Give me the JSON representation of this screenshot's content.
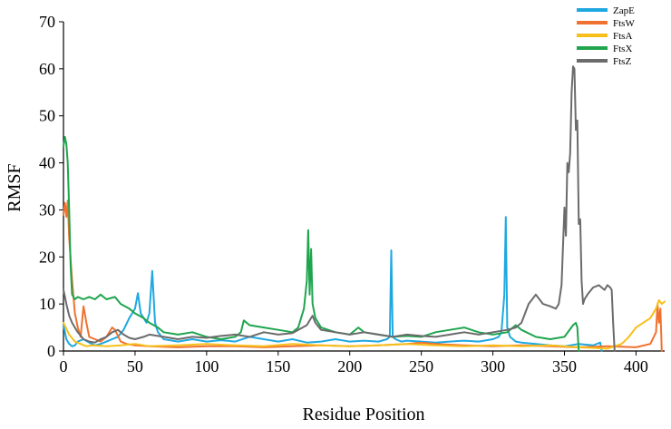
{
  "chart_data": {
    "type": "line",
    "title": "",
    "xlabel": "Residue Position",
    "ylabel": "RMSF",
    "xlim": [
      0,
      420
    ],
    "ylim": [
      0,
      70
    ],
    "x_ticks": [
      0,
      50,
      100,
      150,
      200,
      250,
      300,
      350,
      400
    ],
    "y_ticks": [
      0,
      10,
      20,
      30,
      40,
      50,
      60,
      70
    ],
    "grid": false,
    "legend_position": "top-right",
    "series": [
      {
        "name": "ZapE",
        "color": "#1FA8E0",
        "x": [
          0,
          2,
          4,
          6,
          8,
          10,
          14,
          18,
          22,
          26,
          30,
          34,
          38,
          42,
          46,
          48,
          50,
          52,
          54,
          56,
          58,
          60,
          62,
          64,
          66,
          70,
          80,
          90,
          100,
          110,
          120,
          130,
          140,
          150,
          160,
          170,
          180,
          190,
          200,
          210,
          220,
          226,
          228,
          229,
          230,
          232,
          236,
          240,
          250,
          260,
          270,
          280,
          290,
          300,
          304,
          306,
          308,
          309,
          310,
          312,
          316,
          320,
          330,
          340,
          350,
          360,
          370,
          375,
          376
        ],
        "y": [
          5.5,
          2.5,
          1.5,
          1.0,
          1.2,
          2.0,
          2.5,
          1.8,
          1.2,
          1.5,
          2.0,
          2.5,
          3.0,
          4.5,
          7.0,
          8.0,
          9.0,
          12.3,
          8.0,
          7.0,
          6.0,
          8.0,
          17.0,
          6.0,
          4.0,
          2.5,
          2.0,
          2.5,
          2.0,
          2.3,
          2.0,
          3.0,
          2.5,
          2.0,
          2.5,
          1.8,
          2.0,
          2.5,
          2.0,
          2.2,
          2.0,
          2.5,
          3.0,
          21.4,
          3.0,
          2.5,
          2.0,
          2.2,
          2.0,
          1.8,
          2.0,
          2.2,
          2.0,
          2.5,
          3.0,
          4.0,
          12.0,
          28.5,
          5.0,
          3.0,
          2.0,
          1.8,
          1.5,
          1.2,
          1.0,
          1.5,
          1.2,
          1.8,
          0
        ]
      },
      {
        "name": "FtsW",
        "color": "#F07230",
        "x": [
          0,
          1,
          2,
          3,
          4,
          6,
          8,
          10,
          12,
          14,
          16,
          18,
          22,
          26,
          30,
          34,
          36,
          40,
          44,
          50,
          60,
          80,
          100,
          120,
          140,
          160,
          180,
          200,
          220,
          240,
          250,
          260,
          280,
          300,
          320,
          340,
          360,
          380,
          400,
          410,
          414,
          415,
          416,
          417,
          418
        ],
        "y": [
          29.0,
          31.5,
          28.5,
          32.0,
          24.0,
          15.0,
          8.0,
          5.0,
          3.0,
          9.5,
          6.0,
          3.0,
          2.5,
          2.0,
          3.0,
          5.0,
          4.5,
          2.0,
          1.5,
          1.2,
          1.0,
          0.8,
          1.0,
          1.0,
          0.8,
          1.0,
          1.2,
          1.0,
          1.2,
          1.5,
          1.8,
          1.5,
          1.2,
          1.0,
          1.2,
          1.0,
          0.8,
          1.0,
          0.8,
          1.5,
          4.0,
          10.0,
          6.0,
          9.0,
          0
        ]
      },
      {
        "name": "FtsA",
        "color": "#F7BF1A",
        "x": [
          0,
          4,
          8,
          12,
          16,
          20,
          30,
          40,
          50,
          60,
          80,
          100,
          120,
          140,
          160,
          180,
          200,
          220,
          240,
          260,
          280,
          300,
          320,
          340,
          360,
          380,
          390,
          395,
          400,
          405,
          410,
          414,
          416,
          418,
          420
        ],
        "y": [
          6.0,
          3.5,
          2.0,
          1.5,
          1.0,
          1.2,
          1.0,
          1.2,
          1.5,
          1.0,
          1.2,
          1.5,
          1.2,
          1.0,
          1.5,
          1.2,
          1.0,
          1.2,
          1.5,
          1.2,
          1.0,
          1.2,
          1.0,
          1.2,
          0.8,
          0.5,
          1.5,
          3.0,
          5.0,
          6.0,
          7.0,
          9.0,
          10.8,
          10.0,
          10.5
        ]
      },
      {
        "name": "FtsX",
        "color": "#1FA54E",
        "x": [
          0,
          1,
          2,
          3,
          4,
          5,
          6,
          8,
          10,
          14,
          18,
          22,
          26,
          30,
          36,
          40,
          46,
          50,
          56,
          60,
          66,
          70,
          80,
          90,
          100,
          110,
          120,
          124,
          126,
          130,
          140,
          150,
          160,
          164,
          168,
          170,
          171,
          172,
          173,
          174,
          176,
          180,
          190,
          200,
          206,
          210,
          220,
          230,
          240,
          250,
          260,
          270,
          280,
          290,
          300,
          310,
          316,
          320,
          330,
          340,
          350,
          356,
          358,
          359,
          360
        ],
        "y": [
          43.5,
          45.5,
          44.0,
          40.0,
          30.0,
          18.0,
          12.0,
          11.0,
          11.5,
          11.0,
          11.5,
          11.0,
          12.0,
          11.0,
          11.5,
          10.0,
          9.0,
          8.0,
          7.0,
          6.0,
          5.0,
          4.0,
          3.5,
          4.0,
          3.0,
          2.5,
          3.0,
          4.0,
          6.5,
          5.5,
          5.0,
          4.5,
          4.0,
          5.0,
          9.0,
          15.0,
          25.7,
          12.0,
          21.7,
          10.0,
          7.0,
          5.0,
          4.0,
          3.5,
          5.0,
          4.0,
          3.5,
          3.0,
          3.2,
          3.0,
          4.0,
          4.5,
          5.0,
          4.0,
          3.5,
          4.0,
          5.5,
          4.5,
          3.0,
          2.5,
          3.0,
          5.5,
          6.0,
          5.0,
          0
        ]
      },
      {
        "name": "FtsZ",
        "color": "#6B6B6B",
        "x": [
          0,
          2,
          4,
          6,
          8,
          10,
          14,
          18,
          22,
          26,
          30,
          34,
          38,
          42,
          46,
          50,
          56,
          60,
          70,
          80,
          90,
          100,
          110,
          120,
          130,
          140,
          150,
          160,
          170,
          172,
          174,
          176,
          180,
          190,
          200,
          210,
          220,
          230,
          240,
          250,
          260,
          270,
          280,
          290,
          300,
          310,
          316,
          320,
          325,
          330,
          335,
          340,
          344,
          346,
          348,
          350,
          351,
          352,
          353,
          354,
          355,
          356,
          357,
          358,
          359,
          360,
          361,
          362,
          363,
          364,
          366,
          370,
          374,
          378,
          380,
          382,
          383,
          384,
          385
        ],
        "y": [
          13.0,
          10.0,
          7.5,
          6.0,
          5.0,
          4.0,
          2.5,
          2.0,
          1.8,
          2.5,
          3.0,
          4.0,
          4.5,
          3.5,
          2.8,
          2.5,
          3.0,
          3.5,
          3.0,
          2.5,
          3.0,
          2.8,
          3.2,
          3.5,
          3.0,
          4.0,
          3.5,
          3.8,
          5.5,
          6.5,
          7.5,
          6.0,
          4.5,
          4.0,
          3.5,
          4.0,
          3.5,
          3.0,
          3.5,
          3.2,
          3.0,
          3.5,
          4.0,
          3.5,
          4.0,
          4.5,
          5.0,
          6.0,
          10.0,
          12.0,
          10.0,
          9.5,
          9.0,
          10.0,
          14.0,
          30.5,
          24.5,
          40.0,
          38.0,
          42.0,
          55.0,
          60.5,
          60.0,
          47.0,
          49.0,
          27.0,
          28.0,
          15.0,
          10.0,
          11.0,
          12.0,
          13.5,
          14.0,
          13.0,
          14.0,
          13.5,
          13.0,
          6.0,
          0
        ]
      }
    ]
  }
}
